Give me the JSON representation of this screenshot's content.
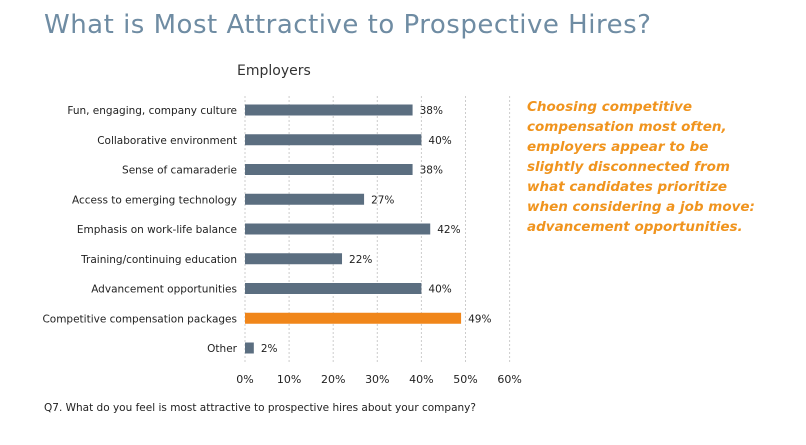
{
  "chart_data": {
    "type": "bar",
    "orientation": "horizontal",
    "title": "What is Most Attractive to Prospective Hires?",
    "subtitle": "Employers",
    "categories": [
      "Fun, engaging, company culture",
      "Collaborative environment",
      "Sense of camaraderie",
      "Access to emerging technology",
      "Emphasis on work-life balance",
      "Training/continuing education",
      "Advancement opportunities",
      "Competitive compensation packages",
      "Other"
    ],
    "values": [
      38,
      40,
      38,
      27,
      42,
      22,
      40,
      49,
      2
    ],
    "value_labels": [
      "38%",
      "40%",
      "38%",
      "27%",
      "42%",
      "22%",
      "40%",
      "49%",
      "2%"
    ],
    "highlight_index": 7,
    "colors": {
      "bar": "#5b6e80",
      "highlight": "#f0861a",
      "grid": "#cccccc"
    },
    "xlim": [
      0,
      60
    ],
    "xticks": [
      "0%",
      "10%",
      "20%",
      "30%",
      "40%",
      "50%",
      "60%"
    ],
    "grid": true,
    "annotation": "Choosing competitive compensation most often, employers appear to be slightly disconnected from what candidates prioritize when considering a job move: advancement opportunities."
  },
  "footnote": "Q7. What do you feel is most attractive to prospective hires about your company?"
}
